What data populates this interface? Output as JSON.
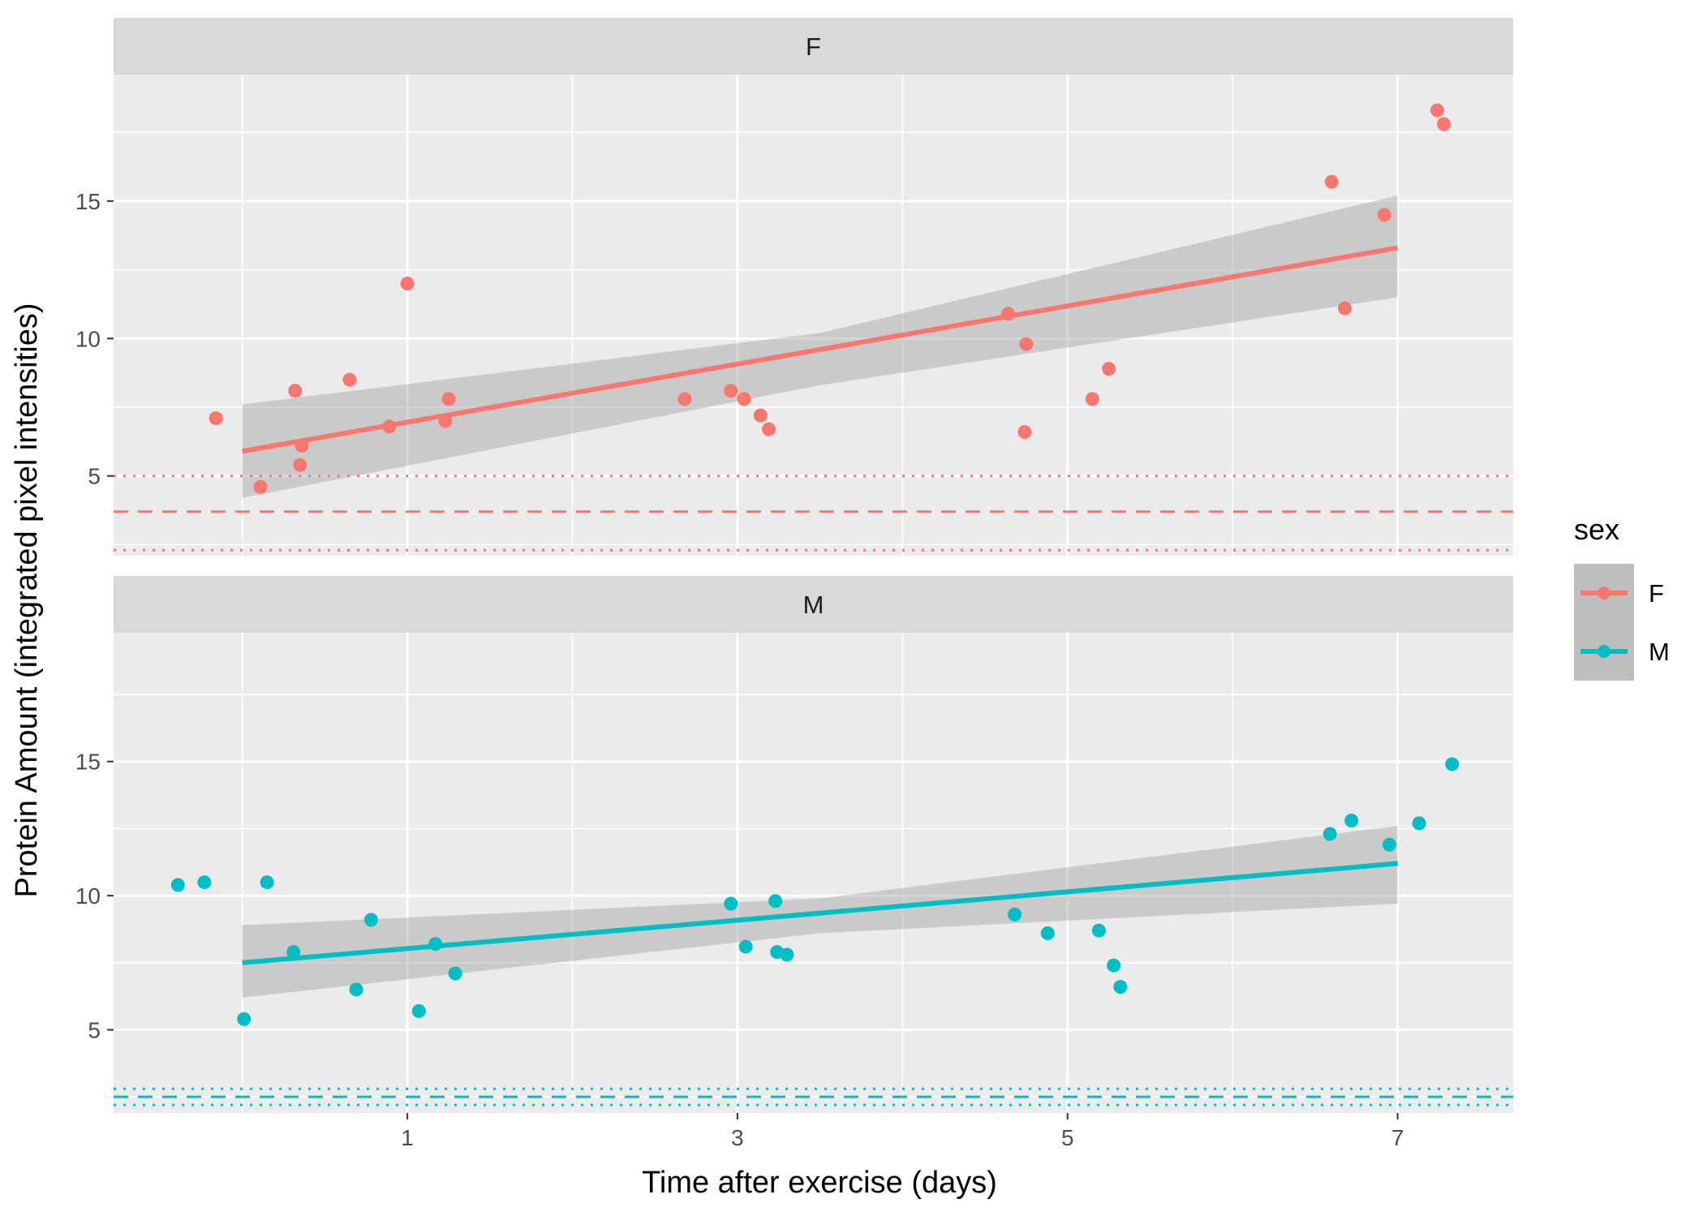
{
  "chart_data": {
    "type": "scatter",
    "xlabel": "Time after exercise (days)",
    "ylabel": "Protein Amount (integrated pixel intensities)",
    "x_ticks": [
      1,
      3,
      5,
      7
    ],
    "y_ticks": [
      5,
      10,
      15
    ],
    "xlim": [
      -0.78,
      7.7
    ],
    "legend": {
      "title": "sex",
      "position": "right",
      "entries": [
        {
          "label": "F",
          "color": "#F8766D"
        },
        {
          "label": "M",
          "color": "#00BFC4"
        }
      ]
    },
    "panels": [
      {
        "label": "F",
        "color": "#F8766D",
        "ylim": [
          2.1,
          19.6
        ],
        "fit": {
          "x0": 0,
          "y0": 5.9,
          "x1": 7,
          "y1": 13.3,
          "lower0": 4.2,
          "upper0": 7.6,
          "lowerMid": 8.3,
          "upperMid": 10.2,
          "lower1": 11.5,
          "upper1": 15.2
        },
        "hline_dashed": 3.7,
        "hline_dotted": [
          2.3,
          5.0
        ],
        "points": [
          [
            -0.16,
            7.1
          ],
          [
            0.11,
            4.6
          ],
          [
            0.32,
            8.1
          ],
          [
            0.36,
            6.1
          ],
          [
            0.35,
            5.4
          ],
          [
            0.65,
            8.5
          ],
          [
            0.89,
            6.8
          ],
          [
            1.0,
            12.0
          ],
          [
            1.23,
            7.0
          ],
          [
            1.25,
            7.8
          ],
          [
            2.68,
            7.8
          ],
          [
            2.96,
            8.1
          ],
          [
            3.04,
            7.8
          ],
          [
            3.14,
            7.2
          ],
          [
            3.19,
            6.7
          ],
          [
            4.64,
            10.9
          ],
          [
            4.75,
            9.8
          ],
          [
            4.74,
            6.6
          ],
          [
            5.15,
            7.8
          ],
          [
            5.25,
            8.9
          ],
          [
            6.6,
            15.7
          ],
          [
            6.68,
            11.1
          ],
          [
            6.92,
            14.5
          ],
          [
            7.24,
            18.3
          ],
          [
            7.28,
            17.8
          ]
        ]
      },
      {
        "label": "M",
        "color": "#00BFC4",
        "ylim": [
          1.9,
          19.8
        ],
        "fit": {
          "x0": 0,
          "y0": 7.5,
          "x1": 7,
          "y1": 11.2,
          "lower0": 6.2,
          "upper0": 8.9,
          "lowerMid": 8.6,
          "upperMid": 9.9,
          "lower1": 9.7,
          "upper1": 12.6
        },
        "hline_dashed": 2.5,
        "hline_dotted": [
          2.2,
          2.8
        ],
        "points": [
          [
            -0.39,
            10.4
          ],
          [
            -0.23,
            10.5
          ],
          [
            0.01,
            5.4
          ],
          [
            0.15,
            10.5
          ],
          [
            0.31,
            7.9
          ],
          [
            0.69,
            6.5
          ],
          [
            0.78,
            9.1
          ],
          [
            1.07,
            5.7
          ],
          [
            1.17,
            8.2
          ],
          [
            1.29,
            7.1
          ],
          [
            2.96,
            9.7
          ],
          [
            3.05,
            8.1
          ],
          [
            3.23,
            9.8
          ],
          [
            3.24,
            7.9
          ],
          [
            3.3,
            7.8
          ],
          [
            4.68,
            9.3
          ],
          [
            4.88,
            8.6
          ],
          [
            5.19,
            8.7
          ],
          [
            5.28,
            7.4
          ],
          [
            5.32,
            6.6
          ],
          [
            6.59,
            12.3
          ],
          [
            6.72,
            12.8
          ],
          [
            6.95,
            11.9
          ],
          [
            7.13,
            12.7
          ],
          [
            7.33,
            14.9
          ]
        ]
      }
    ]
  }
}
